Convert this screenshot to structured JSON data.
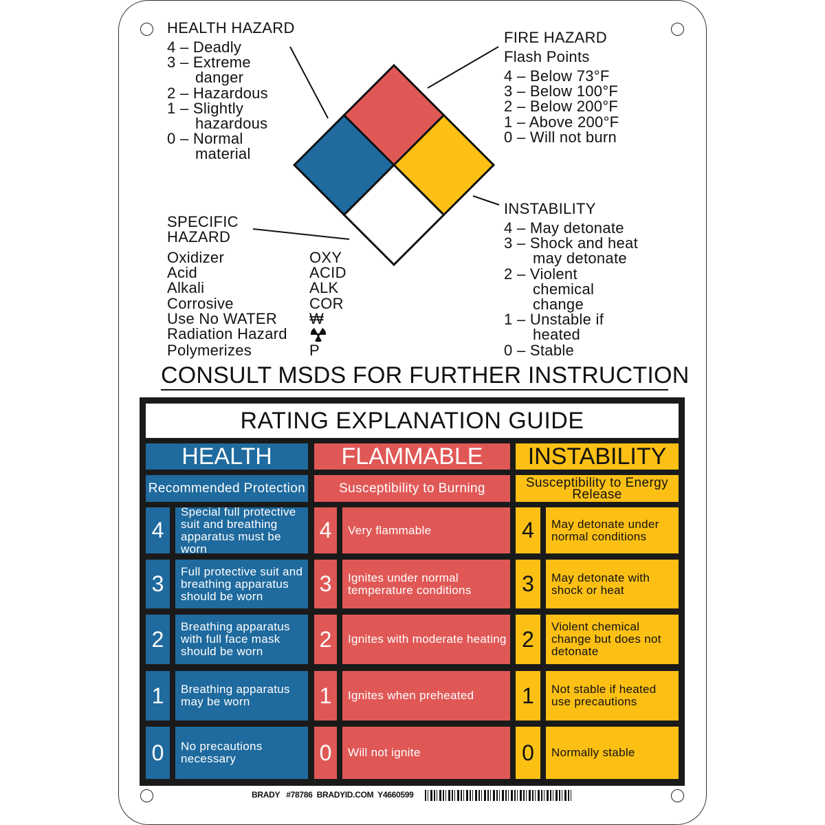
{
  "colors": {
    "health": "#1f6a9e",
    "flammable": "#e05856",
    "instability": "#fcc015",
    "special": "#ffffff"
  },
  "health_hazard": {
    "title": "HEALTH HAZARD",
    "lines": [
      "4 – Deadly",
      "3 – Extreme",
      "danger",
      "2 – Hazardous",
      "1 – Slightly",
      "hazardous",
      "0 – Normal",
      "material"
    ]
  },
  "fire_hazard": {
    "title": "FIRE HAZARD",
    "subtitle": "Flash Points",
    "lines": [
      "4 – Below 73°F",
      "3 – Below 100°F",
      "2 – Below 200°F",
      "1 – Above 200°F",
      "0 – Will not burn"
    ]
  },
  "instability": {
    "title": "INSTABILITY",
    "lines": [
      "4 – May detonate",
      "3 – Shock and heat",
      "may detonate",
      "2 – Violent",
      "chemical",
      "change",
      "1 – Unstable if",
      "heated",
      "0 – Stable"
    ]
  },
  "specific_hazard": {
    "title1": "SPECIFIC",
    "title2": "HAZARD",
    "items": [
      {
        "label": "Oxidizer",
        "code": "OXY"
      },
      {
        "label": "Acid",
        "code": "ACID"
      },
      {
        "label": "Alkali",
        "code": "ALK"
      },
      {
        "label": "Corrosive",
        "code": "COR"
      },
      {
        "label": "Use No WATER",
        "code": "₩"
      },
      {
        "label": "Radiation Hazard",
        "code": "radiation-icon"
      },
      {
        "label": "Polymerizes",
        "code": "P"
      }
    ]
  },
  "consult": "CONSULT MSDS FOR FURTHER INSTRUCTION",
  "guide": {
    "title": "RATING EXPLANATION GUIDE",
    "columns": [
      {
        "header": "HEALTH",
        "sub": "Recommended Protection",
        "rows": [
          {
            "n": "4",
            "text": "Special full protective suit and breathing apparatus must be worn"
          },
          {
            "n": "3",
            "text": "Full protective suit and breathing apparatus should be worn"
          },
          {
            "n": "2",
            "text": "Breathing apparatus with full face mask should be worn"
          },
          {
            "n": "1",
            "text": "Breathing apparatus may be worn"
          },
          {
            "n": "0",
            "text": "No precautions necessary"
          }
        ]
      },
      {
        "header": "FLAMMABLE",
        "sub": "Susceptibility to Burning",
        "rows": [
          {
            "n": "4",
            "text": "Very flammable"
          },
          {
            "n": "3",
            "text": "Ignites under normal temperature conditions"
          },
          {
            "n": "2",
            "text": "Ignites with moderate heating"
          },
          {
            "n": "1",
            "text": "Ignites when preheated"
          },
          {
            "n": "0",
            "text": "Will not ignite"
          }
        ]
      },
      {
        "header": "INSTABILITY",
        "sub": "Susceptibility to Energy Release",
        "rows": [
          {
            "n": "4",
            "text": "May detonate under normal conditions"
          },
          {
            "n": "3",
            "text": "May detonate with shock or heat"
          },
          {
            "n": "2",
            "text": "Violent chemical change but does not detonate"
          },
          {
            "n": "1",
            "text": "Not stable if heated use precautions"
          },
          {
            "n": "0",
            "text": "Normally stable"
          }
        ]
      }
    ]
  },
  "footer": {
    "brand": "BRADY",
    "part": "#78786",
    "site": "BRADYID.COM",
    "code": "Y4660599"
  }
}
